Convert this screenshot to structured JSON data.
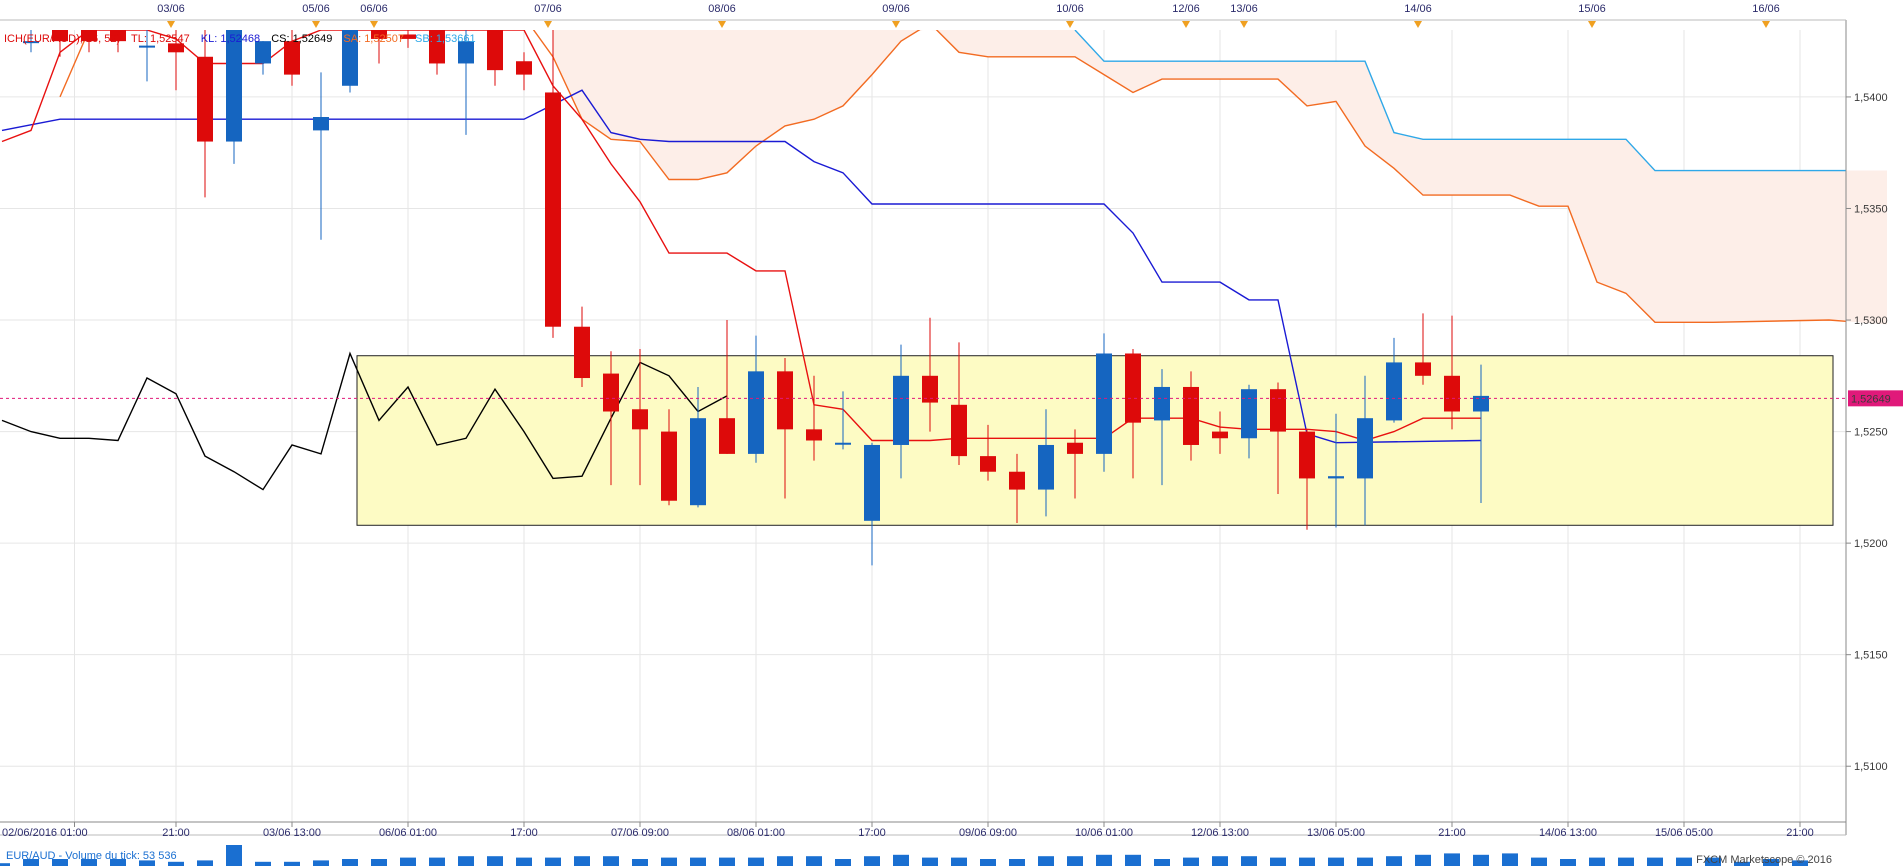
{
  "chart_data": {
    "type": "candlestick",
    "instrument": "EUR/AUD",
    "ylim": [
      1.5075,
      1.543
    ],
    "y_ticks": [
      "1,5400",
      "1,5350",
      "1,5300",
      "1,5250",
      "1,5200",
      "1,5150",
      "1,5100"
    ],
    "y_tick_values": [
      1.54,
      1.535,
      1.53,
      1.525,
      1.52,
      1.515,
      1.51
    ],
    "top_dates": [
      "03/06",
      "05/06",
      "06/06",
      "07/06",
      "08/06",
      "09/06",
      "10/06",
      "12/06",
      "13/06",
      "14/06",
      "15/06",
      "16/06"
    ],
    "top_date_index": [
      5,
      10,
      12,
      18,
      24,
      30,
      36,
      40,
      42,
      48,
      54,
      60
    ],
    "bottom_labels": [
      "02/06/2016 01:00",
      "21:00",
      "03/06 13:00",
      "06/06 01:00",
      "17:00",
      "07/06 09:00",
      "08/06 01:00",
      "17:00",
      "09/06 09:00",
      "10/06 01:00",
      "12/06 13:00",
      "13/06 05:00",
      "21:00",
      "14/06 13:00",
      "15/06 05:00",
      "21:00"
    ],
    "bottom_label_index": [
      1.5,
      5,
      9,
      13,
      17,
      21,
      25,
      29,
      33,
      37,
      41,
      45,
      49,
      53,
      57,
      61
    ],
    "current_price": 1.52649,
    "current_price_label": "1,52649",
    "legend": {
      "ich": "ICH(EUR/AUD), 26, 52)",
      "tl": "TL: 1,52547",
      "kl": "KL: 1,52468",
      "cs": "CS: 1,52649",
      "sa": "SA: 1,52507",
      "sb": "SB: 1,53661"
    },
    "highlight_box": {
      "x_from": 12.1,
      "x_to": 63.2,
      "y_from": 1.5208,
      "y_to": 1.5284,
      "color": "#fdfbc4"
    },
    "colors": {
      "bull": "#1565c0",
      "bear": "#dd0a0a",
      "tenkan": "#e81010",
      "kijun": "#1a1ad4",
      "chikou": "#000000",
      "span_a": "#f26b22",
      "span_b": "#2fa8e8",
      "cloud": "#fdeee8",
      "price_line": "#e0197a"
    },
    "candles": [
      {
        "o": 1.5425,
        "h": 1.543,
        "l": 1.542,
        "c": 1.5425
      },
      {
        "o": 1.543,
        "h": 1.543,
        "l": 1.5418,
        "c": 1.5425
      },
      {
        "o": 1.543,
        "h": 1.543,
        "l": 1.542,
        "c": 1.5425
      },
      {
        "o": 1.543,
        "h": 1.543,
        "l": 1.542,
        "c": 1.5425
      },
      {
        "o": 1.5423,
        "h": 1.5432,
        "l": 1.5407,
        "c": 1.5423
      },
      {
        "o": 1.5424,
        "h": 1.543,
        "l": 1.5403,
        "c": 1.542
      },
      {
        "o": 1.5418,
        "h": 1.543,
        "l": 1.5355,
        "c": 1.538
      },
      {
        "o": 1.538,
        "h": 1.543,
        "l": 1.537,
        "c": 1.543
      },
      {
        "o": 1.5415,
        "h": 1.5425,
        "l": 1.541,
        "c": 1.5425
      },
      {
        "o": 1.5425,
        "h": 1.543,
        "l": 1.5405,
        "c": 1.541
      },
      {
        "o": 1.5385,
        "h": 1.5411,
        "l": 1.5336,
        "c": 1.5391
      },
      {
        "o": 1.5405,
        "h": 1.543,
        "l": 1.5402,
        "c": 1.543
      },
      {
        "o": 1.543,
        "h": 1.543,
        "l": 1.5415,
        "c": 1.5426
      },
      {
        "o": 1.5428,
        "h": 1.543,
        "l": 1.5422,
        "c": 1.5426
      },
      {
        "o": 1.543,
        "h": 1.543,
        "l": 1.541,
        "c": 1.5415
      },
      {
        "o": 1.5415,
        "h": 1.543,
        "l": 1.5383,
        "c": 1.5425
      },
      {
        "o": 1.543,
        "h": 1.543,
        "l": 1.5405,
        "c": 1.5412
      },
      {
        "o": 1.5416,
        "h": 1.542,
        "l": 1.5403,
        "c": 1.541
      },
      {
        "o": 1.5402,
        "h": 1.543,
        "l": 1.5292,
        "c": 1.5297
      },
      {
        "o": 1.5297,
        "h": 1.5306,
        "l": 1.527,
        "c": 1.5274
      },
      {
        "o": 1.5276,
        "h": 1.5286,
        "l": 1.5226,
        "c": 1.5259
      },
      {
        "o": 1.526,
        "h": 1.5287,
        "l": 1.5226,
        "c": 1.5251
      },
      {
        "o": 1.525,
        "h": 1.526,
        "l": 1.5217,
        "c": 1.5219
      },
      {
        "o": 1.5217,
        "h": 1.527,
        "l": 1.5216,
        "c": 1.5256
      },
      {
        "o": 1.5256,
        "h": 1.53,
        "l": 1.524,
        "c": 1.524
      },
      {
        "o": 1.524,
        "h": 1.5293,
        "l": 1.5236,
        "c": 1.5277
      },
      {
        "o": 1.5277,
        "h": 1.5283,
        "l": 1.522,
        "c": 1.5251
      },
      {
        "o": 1.5251,
        "h": 1.5275,
        "l": 1.5237,
        "c": 1.5246
      },
      {
        "o": 1.5245,
        "h": 1.5268,
        "l": 1.5242,
        "c": 1.5245
      },
      {
        "o": 1.521,
        "h": 1.5245,
        "l": 1.519,
        "c": 1.5244
      },
      {
        "o": 1.5244,
        "h": 1.5289,
        "l": 1.5229,
        "c": 1.5275
      },
      {
        "o": 1.5275,
        "h": 1.5301,
        "l": 1.525,
        "c": 1.5263
      },
      {
        "o": 1.5262,
        "h": 1.529,
        "l": 1.5235,
        "c": 1.5239
      },
      {
        "o": 1.5239,
        "h": 1.5253,
        "l": 1.5228,
        "c": 1.5232
      },
      {
        "o": 1.5232,
        "h": 1.524,
        "l": 1.5209,
        "c": 1.5224
      },
      {
        "o": 1.5224,
        "h": 1.526,
        "l": 1.5212,
        "c": 1.5244
      },
      {
        "o": 1.5245,
        "h": 1.5251,
        "l": 1.522,
        "c": 1.524
      },
      {
        "o": 1.524,
        "h": 1.5294,
        "l": 1.5232,
        "c": 1.5285
      },
      {
        "o": 1.5285,
        "h": 1.5287,
        "l": 1.5229,
        "c": 1.5254
      },
      {
        "o": 1.5255,
        "h": 1.5278,
        "l": 1.5226,
        "c": 1.527
      },
      {
        "o": 1.527,
        "h": 1.5277,
        "l": 1.5237,
        "c": 1.5244
      },
      {
        "o": 1.525,
        "h": 1.5259,
        "l": 1.524,
        "c": 1.5247
      },
      {
        "o": 1.5247,
        "h": 1.5271,
        "l": 1.5238,
        "c": 1.5269
      },
      {
        "o": 1.5269,
        "h": 1.5272,
        "l": 1.5222,
        "c": 1.525
      },
      {
        "o": 1.525,
        "h": 1.5251,
        "l": 1.5206,
        "c": 1.5229
      },
      {
        "o": 1.5229,
        "h": 1.5258,
        "l": 1.5207,
        "c": 1.523
      },
      {
        "o": 1.5229,
        "h": 1.5275,
        "l": 1.5208,
        "c": 1.5256
      },
      {
        "o": 1.5255,
        "h": 1.5292,
        "l": 1.5254,
        "c": 1.5281
      },
      {
        "o": 1.5281,
        "h": 1.5303,
        "l": 1.5271,
        "c": 1.5275
      },
      {
        "o": 1.5275,
        "h": 1.5302,
        "l": 1.5251,
        "c": 1.5259
      },
      {
        "o": 1.5259,
        "h": 1.528,
        "l": 1.5218,
        "c": 1.5266
      }
    ],
    "tenkan": [
      [
        -1,
        1.538
      ],
      [
        0,
        1.5385
      ],
      [
        1,
        1.542
      ],
      [
        2,
        1.543
      ],
      [
        4,
        1.543
      ],
      [
        5,
        1.5426
      ],
      [
        6,
        1.5415
      ],
      [
        8,
        1.5415
      ],
      [
        9,
        1.5425
      ],
      [
        10,
        1.543
      ],
      [
        17,
        1.543
      ],
      [
        18,
        1.5405
      ],
      [
        19,
        1.539
      ],
      [
        20,
        1.537
      ],
      [
        21,
        1.5353
      ],
      [
        22,
        1.533
      ],
      [
        24,
        1.533
      ],
      [
        25,
        1.5322
      ],
      [
        26,
        1.5322
      ],
      [
        27,
        1.5262
      ],
      [
        28,
        1.526
      ],
      [
        29,
        1.5246
      ],
      [
        31,
        1.5246
      ],
      [
        32,
        1.5247
      ],
      [
        37,
        1.5247
      ],
      [
        38,
        1.5256
      ],
      [
        40,
        1.5256
      ],
      [
        41,
        1.5252
      ],
      [
        42,
        1.5251
      ],
      [
        44,
        1.5251
      ],
      [
        45,
        1.525
      ],
      [
        46,
        1.5246
      ],
      [
        47,
        1.525
      ],
      [
        48,
        1.5256
      ],
      [
        50,
        1.5256
      ]
    ],
    "kijun": [
      [
        -1,
        1.5385
      ],
      [
        1,
        1.539
      ],
      [
        17,
        1.539
      ],
      [
        19,
        1.5403
      ],
      [
        20,
        1.5384
      ],
      [
        21,
        1.5381
      ],
      [
        22,
        1.538
      ],
      [
        26,
        1.538
      ],
      [
        27,
        1.5371
      ],
      [
        28,
        1.5366
      ],
      [
        29,
        1.5352
      ],
      [
        37,
        1.5352
      ],
      [
        38,
        1.5339
      ],
      [
        39,
        1.5317
      ],
      [
        41,
        1.5317
      ],
      [
        42,
        1.5309
      ],
      [
        43,
        1.5309
      ],
      [
        44,
        1.5249
      ],
      [
        45,
        1.5245
      ],
      [
        50,
        1.5246
      ]
    ],
    "chikou": [
      [
        -1,
        1.5255
      ],
      [
        0,
        1.525
      ],
      [
        1,
        1.5247
      ],
      [
        2,
        1.5247
      ],
      [
        3,
        1.5246
      ],
      [
        4,
        1.5274
      ],
      [
        5,
        1.5267
      ],
      [
        6,
        1.5239
      ],
      [
        7,
        1.5232
      ],
      [
        8,
        1.5224
      ],
      [
        9,
        1.5244
      ],
      [
        10,
        1.524
      ],
      [
        11,
        1.5285
      ],
      [
        12,
        1.5255
      ],
      [
        13,
        1.527
      ],
      [
        14,
        1.5244
      ],
      [
        15,
        1.5247
      ],
      [
        16,
        1.5269
      ],
      [
        17,
        1.525
      ],
      [
        18,
        1.5229
      ],
      [
        19,
        1.523
      ],
      [
        20,
        1.5256
      ],
      [
        21,
        1.5281
      ],
      [
        22,
        1.5275
      ],
      [
        23,
        1.5259
      ],
      [
        24,
        1.5266
      ]
    ],
    "span_a": [
      [
        1,
        1.54
      ],
      [
        2,
        1.543
      ],
      [
        3,
        1.5436
      ],
      [
        17,
        1.5436
      ],
      [
        18,
        1.5418
      ],
      [
        19,
        1.539
      ],
      [
        20,
        1.5381
      ],
      [
        21,
        1.538
      ],
      [
        22,
        1.5363
      ],
      [
        23,
        1.5363
      ],
      [
        24,
        1.5366
      ],
      [
        25,
        1.5378
      ],
      [
        26,
        1.5387
      ],
      [
        27,
        1.539
      ],
      [
        28,
        1.5396
      ],
      [
        29,
        1.541
      ],
      [
        30,
        1.5425
      ],
      [
        31,
        1.5433
      ],
      [
        32,
        1.542
      ],
      [
        33,
        1.5418
      ],
      [
        36,
        1.5418
      ],
      [
        37,
        1.541
      ],
      [
        38,
        1.5402
      ],
      [
        39,
        1.5408
      ],
      [
        43,
        1.5408
      ],
      [
        44,
        1.5396
      ],
      [
        45,
        1.5398
      ],
      [
        46,
        1.5378
      ],
      [
        47,
        1.5368
      ],
      [
        48,
        1.5356
      ],
      [
        51,
        1.5356
      ],
      [
        52,
        1.5351
      ],
      [
        53,
        1.5351
      ],
      [
        54,
        1.5317
      ],
      [
        55,
        1.5312
      ],
      [
        56,
        1.5299
      ],
      [
        58,
        1.5299
      ],
      [
        62,
        1.53
      ],
      [
        64,
        1.5298
      ]
    ],
    "span_b": [
      [
        36,
        1.543
      ],
      [
        37,
        1.5416
      ],
      [
        46,
        1.5416
      ],
      [
        47,
        1.5384
      ],
      [
        48,
        1.5381
      ],
      [
        55,
        1.5381
      ],
      [
        56,
        1.5367
      ],
      [
        64,
        1.5367
      ]
    ],
    "volumes": [
      2,
      5,
      5,
      5,
      5,
      4,
      3,
      4,
      15,
      3,
      3,
      4,
      5,
      5,
      6,
      6,
      7,
      7,
      6,
      6,
      7,
      7,
      5,
      6,
      6,
      6,
      6,
      7,
      7,
      5,
      7,
      8,
      6,
      6,
      5,
      5,
      7,
      7,
      8,
      8,
      5,
      6,
      7,
      7,
      6,
      6,
      6,
      6,
      7,
      8,
      9,
      8,
      9,
      6,
      5,
      6,
      6,
      6,
      6,
      6,
      3,
      5,
      4
    ],
    "volume_label": "EUR/AUD - Volume du tick: 53 536",
    "copyright": "FXCM Marketscope © 2016"
  }
}
